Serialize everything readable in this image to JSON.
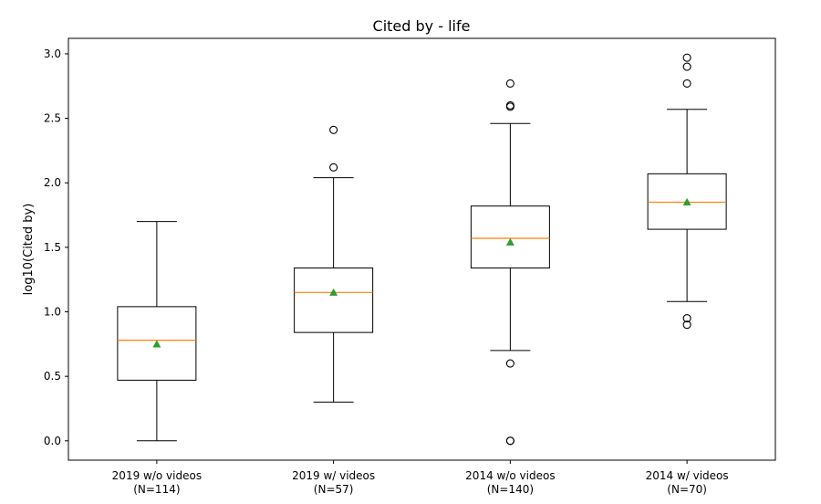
{
  "chart_data": {
    "type": "boxplot",
    "title": "Cited by - life",
    "xlabel": "",
    "ylabel": "log10(Cited by)",
    "ylim": [
      -0.15,
      3.12
    ],
    "yticks": [
      0.0,
      0.5,
      1.0,
      1.5,
      2.0,
      2.5,
      3.0
    ],
    "ytick_labels": [
      "0.0",
      "0.5",
      "1.0",
      "1.5",
      "2.0",
      "2.5",
      "3.0"
    ],
    "grid": false,
    "legend": "none",
    "categories": [
      [
        "2019 w/o videos",
        "(N=114)"
      ],
      [
        "2019 w/ videos",
        "(N=57)"
      ],
      [
        "2014 w/o videos",
        "(N=140)"
      ],
      [
        "2014 w/ videos",
        "(N=70)"
      ]
    ],
    "boxes": [
      {
        "whisker_low": 0.0,
        "q1": 0.47,
        "median": 0.78,
        "q3": 1.04,
        "whisker_high": 1.7,
        "mean": 0.75,
        "outliers": []
      },
      {
        "whisker_low": 0.3,
        "q1": 0.84,
        "median": 1.15,
        "q3": 1.34,
        "whisker_high": 2.04,
        "mean": 1.15,
        "outliers": [
          2.12,
          2.41
        ]
      },
      {
        "whisker_low": 0.7,
        "q1": 1.34,
        "median": 1.57,
        "q3": 1.82,
        "whisker_high": 2.46,
        "mean": 1.54,
        "outliers": [
          0.0,
          0.0,
          0.6,
          2.59,
          2.6,
          2.77
        ]
      },
      {
        "whisker_low": 1.08,
        "q1": 1.64,
        "median": 1.85,
        "q3": 2.07,
        "whisker_high": 2.57,
        "mean": 1.85,
        "outliers": [
          0.9,
          0.95,
          2.77,
          2.9,
          2.97
        ]
      }
    ],
    "colors": {
      "box": "#000000",
      "median": "#ff7f0e",
      "mean": "#2ca02c"
    }
  }
}
